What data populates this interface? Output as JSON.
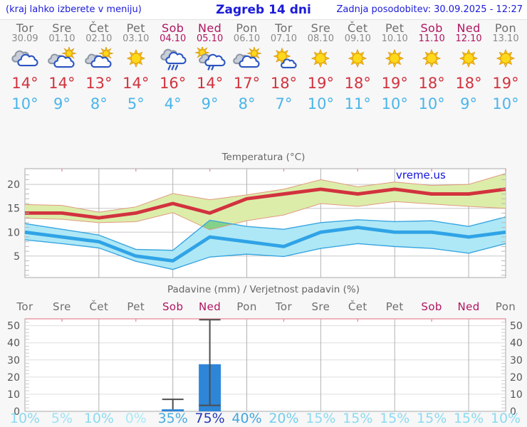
{
  "header": {
    "hint": "(kraj lahko izberete v meniju)",
    "title": "Zagreb 14 dni",
    "updated": "Zadnja posodobitev: 30.09.2025 - 12:27"
  },
  "watermark": "vreme.us",
  "colors": {
    "header_blue": "#1b1bd8",
    "weekday": "#6e6e6e",
    "weekend": "#b01560",
    "date_gray": "#8a8a8a",
    "high_red": "#d2323e",
    "low_blue": "#4ab5ea",
    "title_gray": "#666666",
    "axis_label": "#555555",
    "plot_border": "#a8a8a8",
    "grid_h_temp": "#c8c8c8",
    "grid_h_precip": "#dddddd",
    "grid_v": "#b2b2b2",
    "top_tick_pink": "#e89aa8",
    "band_green": "#dcedaa",
    "band_green_edge": "#e09a7e",
    "band_blue": "#aee8f6",
    "band_blue_edge": "#38a5e0",
    "band_overlap": "#84d189",
    "bar_blue": "#2e86d8",
    "whisker": "#4d4d4d"
  },
  "days": [
    {
      "name": "Tor",
      "date": "30.09",
      "weekend": false,
      "icon": "cloudy",
      "high": 14,
      "low": 10,
      "prob": "10%",
      "prob_color": "#8bdaf1"
    },
    {
      "name": "Sre",
      "date": "01.10",
      "weekend": false,
      "icon": "partly-sunny",
      "high": 14,
      "low": 9,
      "prob": "5%",
      "prob_color": "#9ce2f5"
    },
    {
      "name": "Čet",
      "date": "02.10",
      "weekend": false,
      "icon": "partly-sunny",
      "high": 13,
      "low": 8,
      "prob": "10%",
      "prob_color": "#8bdaf1"
    },
    {
      "name": "Pet",
      "date": "03.10",
      "weekend": false,
      "icon": "sunny",
      "high": 14,
      "low": 5,
      "prob": "0%",
      "prob_color": "#aae8f7"
    },
    {
      "name": "Sob",
      "date": "04.10",
      "weekend": true,
      "icon": "rain",
      "high": 16,
      "low": 4,
      "prob": "35%",
      "prob_color": "#49ace2"
    },
    {
      "name": "Ned",
      "date": "05.10",
      "weekend": true,
      "icon": "sun-rain",
      "high": 14,
      "low": 9,
      "prob": "75%",
      "prob_color": "#2639b6"
    },
    {
      "name": "Pon",
      "date": "06.10",
      "weekend": false,
      "icon": "partly-sunny",
      "high": 17,
      "low": 8,
      "prob": "40%",
      "prob_color": "#41a5de"
    },
    {
      "name": "Tor",
      "date": "07.10",
      "weekend": false,
      "icon": "mostly-sunny",
      "high": 18,
      "low": 7,
      "prob": "20%",
      "prob_color": "#72cdee"
    },
    {
      "name": "Sre",
      "date": "08.10",
      "weekend": false,
      "icon": "sunny",
      "high": 19,
      "low": 10,
      "prob": "15%",
      "prob_color": "#8bdaf1"
    },
    {
      "name": "Čet",
      "date": "09.10",
      "weekend": false,
      "icon": "sunny",
      "high": 18,
      "low": 11,
      "prob": "15%",
      "prob_color": "#8bdaf1"
    },
    {
      "name": "Pet",
      "date": "10.10",
      "weekend": false,
      "icon": "sunny",
      "high": 19,
      "low": 10,
      "prob": "15%",
      "prob_color": "#8bdaf1"
    },
    {
      "name": "Sob",
      "date": "11.10",
      "weekend": true,
      "icon": "sunny",
      "high": 18,
      "low": 10,
      "prob": "15%",
      "prob_color": "#8bdaf1"
    },
    {
      "name": "Ned",
      "date": "12.10",
      "weekend": true,
      "icon": "sunny",
      "high": 18,
      "low": 9,
      "prob": "15%",
      "prob_color": "#8bdaf1"
    },
    {
      "name": "Pon",
      "date": "13.10",
      "weekend": false,
      "icon": "sunny",
      "high": 19,
      "low": 10,
      "prob": "10%",
      "prob_color": "#8bdaf1"
    }
  ],
  "chart_data": [
    {
      "type": "line",
      "title": "Temperatura (°C)",
      "categories": [
        "Tor 30.09",
        "Sre 01.10",
        "Čet 02.10",
        "Pet 03.10",
        "Sob 04.10",
        "Ned 05.10",
        "Pon 06.10",
        "Tor 07.10",
        "Sre 08.10",
        "Čet 09.10",
        "Pet 10.10",
        "Sob 11.10",
        "Ned 12.10",
        "Pon 13.10"
      ],
      "ylim": [
        0.5,
        23.3
      ],
      "yticks": [
        5,
        10,
        15,
        20
      ],
      "grid": true,
      "series": [
        {
          "name": "max",
          "color": "#d2323e",
          "values": [
            14,
            14,
            13,
            14,
            16,
            14,
            17,
            18,
            19,
            18,
            19,
            18,
            18,
            19
          ]
        },
        {
          "name": "min",
          "color": "#30a3e6",
          "values": [
            10,
            9,
            8,
            5,
            4,
            9,
            8,
            7,
            10,
            11,
            10,
            10,
            9,
            10
          ]
        },
        {
          "name": "max_upper",
          "values": [
            15.8,
            15.6,
            14.2,
            15.3,
            18.1,
            16.8,
            17.8,
            19,
            21,
            19.5,
            20.5,
            19.8,
            20,
            22.3
          ]
        },
        {
          "name": "max_lower",
          "values": [
            12.9,
            12.7,
            12,
            12.2,
            14.1,
            10.5,
            12.4,
            13.6,
            16,
            15.4,
            16.4,
            15.9,
            15.4,
            15
          ]
        },
        {
          "name": "min_upper",
          "values": [
            11.8,
            10.6,
            9.4,
            6.4,
            6.2,
            12.5,
            11.2,
            10.6,
            12,
            12.6,
            12.2,
            12.4,
            11.2,
            13.2
          ]
        },
        {
          "name": "min_lower",
          "values": [
            8.4,
            7.6,
            6.7,
            3.9,
            2.2,
            4.8,
            5.4,
            4.9,
            6.6,
            7.6,
            7,
            6.6,
            5.6,
            7.6
          ]
        }
      ]
    },
    {
      "type": "bar",
      "title": "Padavine (mm) / Verjetnost padavin (%)",
      "categories": [
        "Tor",
        "Sre",
        "Čet",
        "Pet",
        "Sob",
        "Ned",
        "Pon",
        "Tor",
        "Sre",
        "Čet",
        "Pet",
        "Sob",
        "Ned",
        "Pon"
      ],
      "ylim": [
        0,
        54
      ],
      "yticks": [
        0,
        10,
        20,
        30,
        40,
        50
      ],
      "values": [
        0,
        0,
        0,
        0,
        1.2,
        27.5,
        0,
        0,
        0,
        0,
        0,
        0,
        0,
        0
      ],
      "whiskers": [
        null,
        null,
        null,
        null,
        {
          "lo": null,
          "hi": 7
        },
        {
          "lo": 3.5,
          "hi": 53.5
        },
        null,
        null,
        null,
        null,
        null,
        null,
        null,
        null
      ],
      "probabilities": [
        "10%",
        "5%",
        "10%",
        "0%",
        "35%",
        "75%",
        "40%",
        "20%",
        "15%",
        "15%",
        "15%",
        "15%",
        "15%",
        "10%"
      ]
    }
  ]
}
